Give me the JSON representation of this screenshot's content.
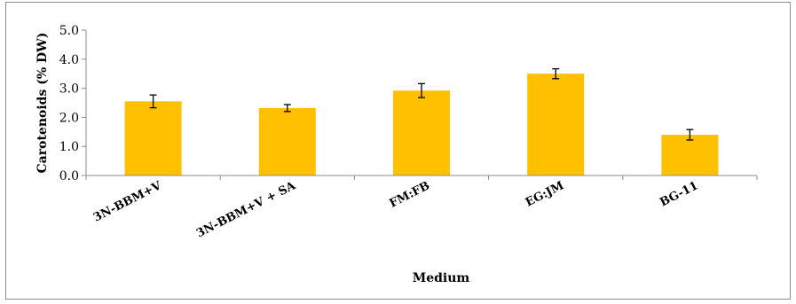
{
  "chart_data": {
    "type": "bar",
    "title": "",
    "xlabel": "Medium",
    "ylabel": "Carotenoids (% DW)",
    "categories": [
      "3N-BBM+V",
      "3N-BBM+V + SA",
      "FM:FB",
      "EG:JM",
      "BG-11"
    ],
    "values": [
      2.55,
      2.32,
      2.92,
      3.5,
      1.4
    ],
    "errors": [
      0.22,
      0.12,
      0.24,
      0.17,
      0.18
    ],
    "ylim": [
      0,
      5
    ],
    "yticks": [
      "0.0",
      "1.0",
      "2.0",
      "3.0",
      "4.0",
      "5.0"
    ],
    "grid": false,
    "legend": "none",
    "bar_color": "#FFC000",
    "error_color": "#000000",
    "axis_color": "#8c8c8c"
  }
}
